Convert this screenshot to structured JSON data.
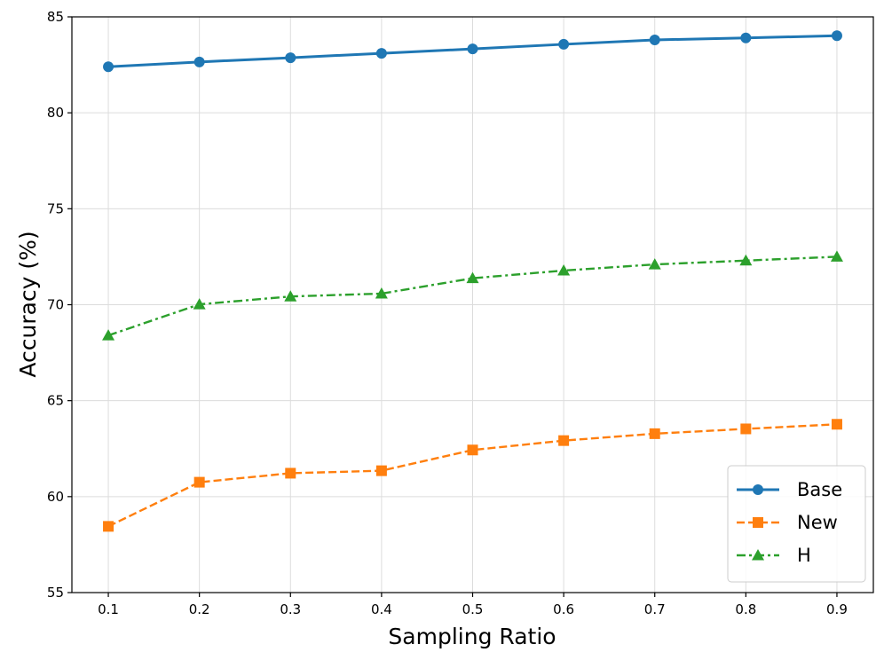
{
  "chart_data": {
    "type": "line",
    "title": "",
    "xlabel": "Sampling Ratio",
    "ylabel": "Accuracy (%)",
    "x": [
      0.1,
      0.2,
      0.3,
      0.4,
      0.5,
      0.6,
      0.7,
      0.8,
      0.9
    ],
    "x_tick_labels": [
      "0.1",
      "0.2",
      "0.3",
      "0.4",
      "0.5",
      "0.6",
      "0.7",
      "0.8",
      "0.9"
    ],
    "xlim": [
      0.06,
      0.94
    ],
    "ylim": [
      55,
      85
    ],
    "y_ticks": [
      55,
      60,
      65,
      70,
      75,
      80,
      85
    ],
    "y_tick_labels": [
      "55",
      "60",
      "65",
      "70",
      "75",
      "80",
      "85"
    ],
    "grid": true,
    "legend_position": "bottom-right",
    "series": [
      {
        "name": "Base",
        "color": "#1f77b4",
        "line_style": "solid",
        "marker": "circle",
        "values": [
          82.4,
          82.65,
          82.87,
          83.1,
          83.33,
          83.57,
          83.8,
          83.9,
          84.02
        ]
      },
      {
        "name": "New",
        "color": "#ff7f0e",
        "line_style": "dashed",
        "marker": "square",
        "values": [
          58.45,
          60.75,
          61.22,
          61.35,
          62.43,
          62.92,
          63.28,
          63.53,
          63.77
        ]
      },
      {
        "name": "H",
        "color": "#2ca02c",
        "line_style": "dashdot",
        "marker": "triangle",
        "values": [
          68.4,
          70.02,
          70.43,
          70.58,
          71.38,
          71.78,
          72.1,
          72.3,
          72.5
        ]
      }
    ]
  }
}
